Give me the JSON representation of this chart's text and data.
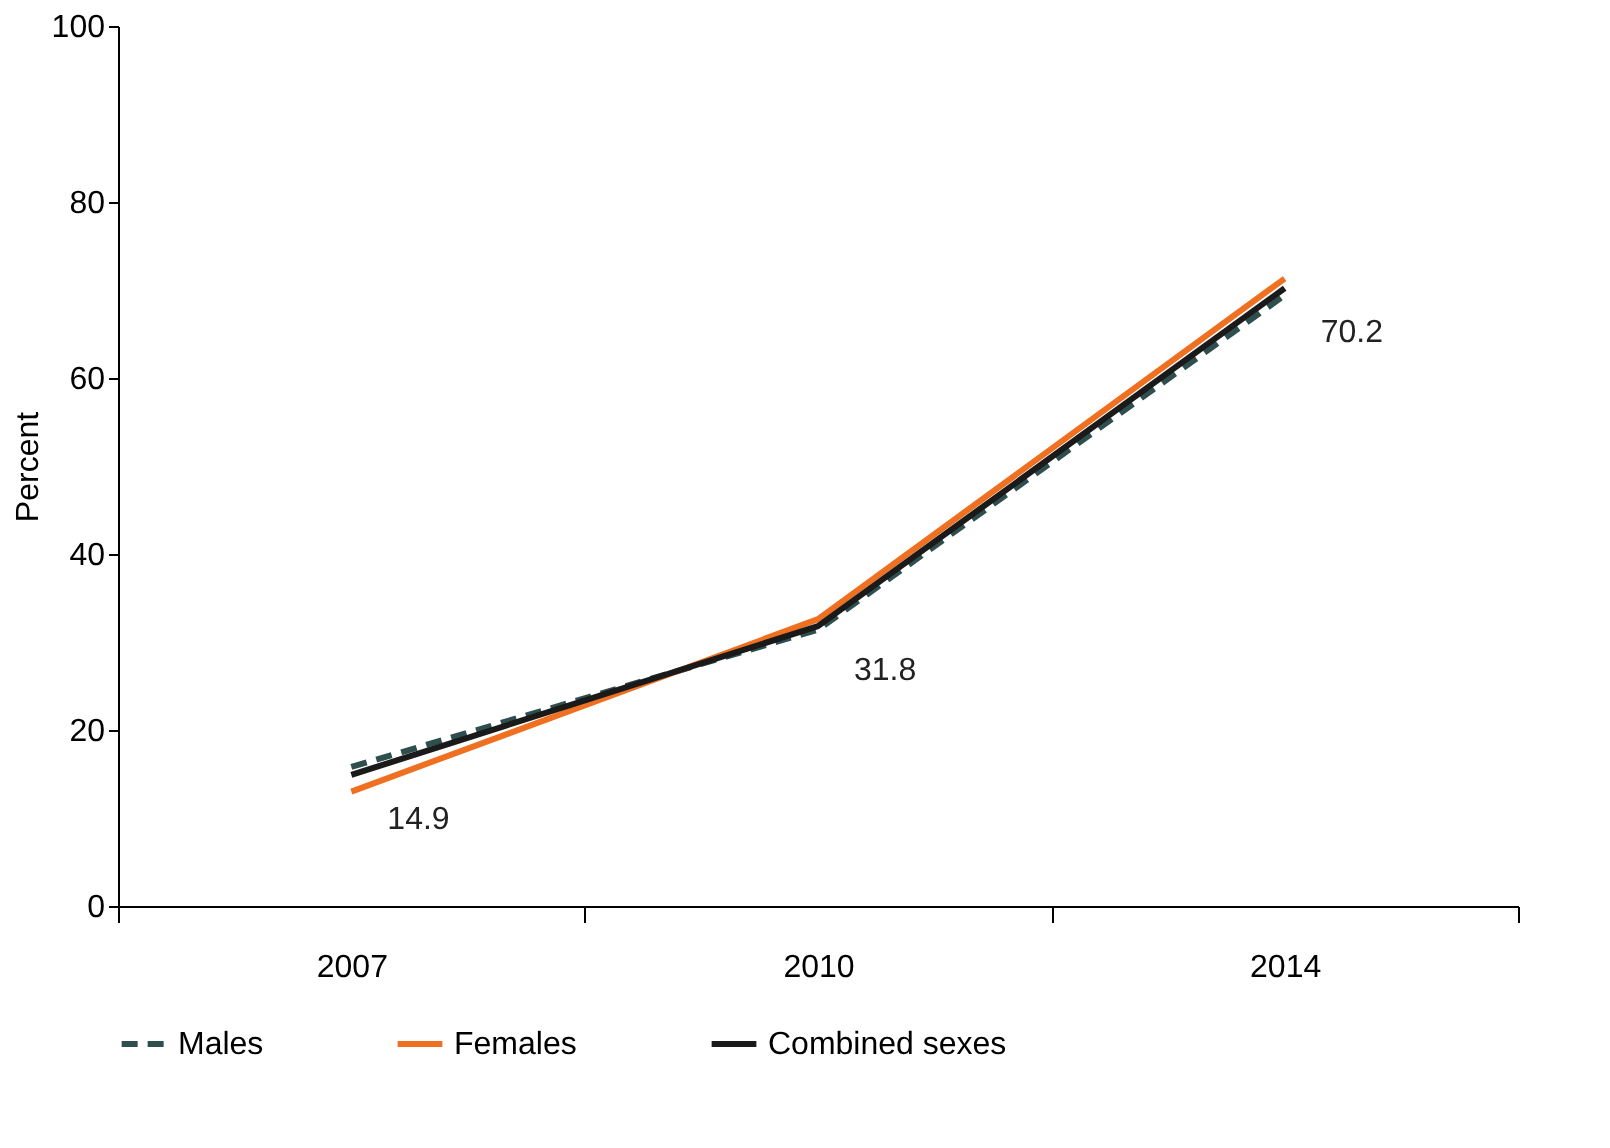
{
  "chart_data": {
    "type": "line",
    "ylabel": "Percent",
    "categories": [
      "2007",
      "2010",
      "2014"
    ],
    "ylim": [
      0,
      100
    ],
    "yticks": [
      0,
      20,
      40,
      60,
      80,
      100
    ],
    "grid": false,
    "legend": "bottom",
    "marker": "none",
    "series": [
      {
        "name": "Males",
        "color": "#2f4f4f",
        "line_style": "dashed",
        "values": [
          15.8,
          31.4,
          69.4
        ]
      },
      {
        "name": "Females",
        "color": "#f07022",
        "line_style": "solid",
        "values": [
          13.0,
          32.6,
          71.3
        ]
      },
      {
        "name": "Combined sexes",
        "color": "#1a1a1a",
        "line_style": "solid",
        "values": [
          14.9,
          31.8,
          70.2
        ],
        "value_labels": [
          "14.9",
          "31.8",
          "70.2"
        ]
      }
    ]
  }
}
